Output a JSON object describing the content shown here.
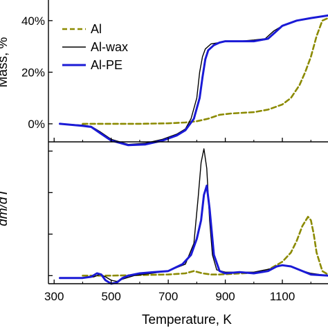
{
  "chart_data": [
    {
      "type": "line",
      "panel": "top",
      "ylabel": "Mass, %",
      "xlim": [
        280,
        1260
      ],
      "ylim": [
        -7,
        48
      ],
      "yticks": [
        0,
        20,
        40
      ],
      "ytick_labels": [
        "0%",
        "20%",
        "40%"
      ],
      "legend": {
        "placement": "top-left"
      },
      "grid": false,
      "series": [
        {
          "name": "Al",
          "color": "#8b8a00",
          "dash": "dashed",
          "x": [
            400,
            500,
            600,
            700,
            760,
            800,
            840,
            880,
            920,
            1000,
            1050,
            1100,
            1130,
            1160,
            1180,
            1200,
            1220,
            1240,
            1260
          ],
          "y": [
            0,
            0,
            0,
            0.2,
            0.5,
            1,
            2,
            3.5,
            4,
            4.5,
            5.5,
            7.5,
            10,
            15,
            20,
            26,
            34,
            40,
            41
          ]
        },
        {
          "name": "Al-wax",
          "color": "#000000",
          "dash": "solid",
          "x": [
            320,
            400,
            430,
            460,
            500,
            560,
            620,
            680,
            730,
            760,
            780,
            800,
            810,
            820,
            830,
            850,
            880,
            900,
            950,
            1000,
            1040,
            1070,
            1100,
            1150,
            1200,
            1260
          ],
          "y": [
            0,
            -0.5,
            -1,
            -3,
            -6,
            -8,
            -7.5,
            -6,
            -4,
            -2,
            2,
            10,
            20,
            26,
            29,
            31,
            31.5,
            32,
            32,
            32.5,
            33,
            36,
            38,
            40,
            41,
            42
          ]
        },
        {
          "name": "Al-PE",
          "color": "#1a1ad6",
          "dash": "solid",
          "x": [
            320,
            400,
            430,
            460,
            500,
            560,
            620,
            680,
            730,
            760,
            790,
            810,
            820,
            830,
            840,
            860,
            880,
            900,
            950,
            1000,
            1050,
            1080,
            1100,
            1150,
            1200,
            1260
          ],
          "y": [
            0,
            -0.8,
            -1.2,
            -3.5,
            -6.5,
            -8.3,
            -8,
            -6.5,
            -4.5,
            -2.5,
            2,
            10,
            18,
            25,
            28.5,
            30.5,
            31.5,
            32,
            32,
            32,
            33,
            36,
            38,
            40,
            41,
            42
          ]
        }
      ]
    },
    {
      "type": "line",
      "panel": "bottom",
      "xlabel": "Temperature, K",
      "ylabel": "dm/dT",
      "xlim": [
        280,
        1260
      ],
      "ylim": [
        -0.05,
        1.18
      ],
      "xticks": [
        300,
        500,
        700,
        900,
        1100
      ],
      "xtick_labels": [
        "300",
        "500",
        "700",
        "900",
        "1100"
      ],
      "yticks_unlabeled": 4,
      "grid": false,
      "series": [
        {
          "name": "Al",
          "color": "#8b8a00",
          "dash": "dashed",
          "x": [
            400,
            500,
            600,
            700,
            760,
            790,
            820,
            850,
            880,
            920,
            1000,
            1050,
            1100,
            1130,
            1150,
            1170,
            1190,
            1200,
            1210,
            1220,
            1240,
            1260
          ],
          "y": [
            0.02,
            0.02,
            0.025,
            0.03,
            0.04,
            0.06,
            0.04,
            0.03,
            0.03,
            0.035,
            0.045,
            0.07,
            0.14,
            0.22,
            0.32,
            0.45,
            0.53,
            0.5,
            0.38,
            0.22,
            0.06,
            0.03
          ]
        },
        {
          "name": "Al-wax",
          "color": "#000000",
          "dash": "solid",
          "x": [
            320,
            400,
            440,
            460,
            480,
            500,
            520,
            540,
            580,
            640,
            700,
            760,
            790,
            805,
            815,
            825,
            835,
            845,
            855,
            870,
            900,
            1000,
            1060,
            1100,
            1130,
            1160,
            1200,
            1260
          ],
          "y": [
            0,
            0,
            0.01,
            0.03,
            0.01,
            -0.02,
            -0.03,
            -0.01,
            0.02,
            0.04,
            0.06,
            0.12,
            0.3,
            0.7,
            1.0,
            1.12,
            0.95,
            0.5,
            0.2,
            0.07,
            0.05,
            0.05,
            0.08,
            0.11,
            0.1,
            0.07,
            0.04,
            0.02
          ]
        },
        {
          "name": "Al-PE",
          "color": "#1a1ad6",
          "dash": "solid",
          "x": [
            320,
            400,
            430,
            450,
            465,
            480,
            500,
            520,
            540,
            560,
            600,
            650,
            700,
            750,
            780,
            800,
            815,
            825,
            835,
            845,
            860,
            880,
            900,
            950,
            1000,
            1050,
            1080,
            1100,
            1130,
            1160,
            1200,
            1260
          ],
          "y": [
            0,
            0,
            0.01,
            0.04,
            0.03,
            -0.02,
            -0.05,
            -0.04,
            0.0,
            0.02,
            0.04,
            0.05,
            0.06,
            0.12,
            0.2,
            0.34,
            0.5,
            0.72,
            0.8,
            0.6,
            0.2,
            0.06,
            0.04,
            0.05,
            0.04,
            0.06,
            0.1,
            0.11,
            0.1,
            0.07,
            0.03,
            0.02
          ]
        }
      ]
    }
  ]
}
